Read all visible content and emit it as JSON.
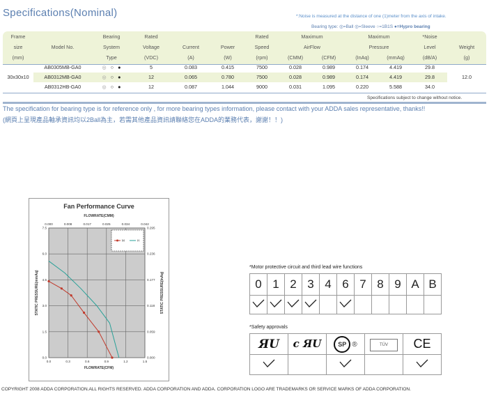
{
  "title": "Specifications(Nominal)",
  "noise_note": "*:Noise is measured at the distance of one (1)meter from the axis of intake.",
  "bearing_type_note": {
    "prefix": "Bearing type:",
    "items": [
      "◎=Ball",
      "◎=Sleeve",
      "○=1B1S",
      "●=Hypro bearing"
    ]
  },
  "table": {
    "headers": [
      [
        "Frame",
        "",
        "Bearing",
        "Rated",
        "",
        "",
        "Rated",
        "Maximum",
        "",
        "Maximum",
        "",
        "*Noise",
        ""
      ],
      [
        "size",
        "Model No.",
        "System",
        "Voltage",
        "Current",
        "Power",
        "Speed",
        "AirFlow",
        "",
        "Pressure",
        "",
        "Level",
        "Weight"
      ],
      [
        "(mm)",
        "",
        "Type",
        "(VDC)",
        "(A)",
        "(W)",
        "(rpm)",
        "(CMM)",
        "(CFM)",
        "(InAq)",
        "(mmAq)",
        "(dB/A)",
        "(g)"
      ]
    ],
    "frame": "30x30x10",
    "weight": "12.0",
    "rows": [
      {
        "model": "AB0305MB-GA0",
        "voltage": "5",
        "current": "0.083",
        "power": "0.415",
        "speed": "7500",
        "cmm": "0.028",
        "cfm": "0.989",
        "inaq": "0.174",
        "mmaq": "4.419",
        "noise": "29.8"
      },
      {
        "model": "AB0312MB-GA0",
        "voltage": "12",
        "current": "0.065",
        "power": "0.780",
        "speed": "7500",
        "cmm": "0.028",
        "cfm": "0.989",
        "inaq": "0.174",
        "mmaq": "4.419",
        "noise": "29.8"
      },
      {
        "model": "AB0312HB-GA0",
        "voltage": "12",
        "current": "0.087",
        "power": "1.044",
        "speed": "9000",
        "cmm": "0.031",
        "cfm": "1.095",
        "inaq": "0.220",
        "mmaq": "5.588",
        "noise": "34.0"
      }
    ],
    "bearing_symbols": [
      "◎",
      "○",
      "●"
    ]
  },
  "footnote": "Specifications subject to change without notice.",
  "english_note": "The specification for bearing type is for reference only , for more bearing types information, please contact with your ADDA sales representative, thanks!!",
  "chinese_note": "(網頁上呈現產品軸承資訊均以2Ball為主，若需其他產品資訊請聯絡您在ADDA的業務代表，謝謝！！)",
  "chart_data": {
    "type": "line",
    "title": "Fan Performance Curve",
    "top_axis_label": "FLOWRATE(CMM)",
    "top_ticks": [
      "0.000",
      "0.008",
      "0.017",
      "0.025",
      "0.034",
      "0.042"
    ],
    "xlabel": "FLOWRATE(CFM)",
    "x_ticks": [
      "0.0",
      "0.3",
      "0.6",
      "0.9",
      "1.2",
      "1.5"
    ],
    "ylabel": "STATIC PRESSURE(mmAq)",
    "y_ticks": [
      "0.0",
      "1.5",
      "3.0",
      "4.5",
      "6.0",
      "7.5"
    ],
    "ylabel_right": "STATIC PRESSURE(InAq)",
    "y_right_ticks": [
      "0.000",
      "0.059",
      "0.118",
      "0.177",
      "0.236",
      "0.295"
    ],
    "xlim": [
      0,
      1.5
    ],
    "ylim": [
      0,
      7.5
    ],
    "grid": true,
    "legend": "top-right",
    "series": [
      {
        "name": "M",
        "color": "#c0392b",
        "x": [
          0.0,
          0.2,
          0.35,
          0.55,
          0.78,
          0.989
        ],
        "y": [
          4.419,
          4.0,
          3.6,
          2.6,
          1.5,
          0.0
        ]
      },
      {
        "name": "H",
        "color": "#2aa198",
        "x": [
          0.0,
          0.25,
          0.5,
          0.75,
          0.95,
          1.095
        ],
        "y": [
          5.588,
          4.9,
          4.0,
          3.0,
          2.0,
          0.0
        ]
      }
    ]
  },
  "motor_title": "*Motor protective circuit and third lead wire functions",
  "motor_functions": [
    "0",
    "1",
    "2",
    "3",
    "4",
    "6",
    "7",
    "8",
    "9",
    "A",
    "B"
  ],
  "motor_checks": [
    true,
    true,
    true,
    true,
    false,
    true,
    false,
    false,
    false,
    false,
    false
  ],
  "safety_title": "*Safety approvals",
  "safety_logos": [
    {
      "icon": "ul-recognized-icon",
      "text": "ЯU"
    },
    {
      "icon": "cul-recognized-icon",
      "text": "c ЯU"
    },
    {
      "icon": "csa-icon",
      "text": "SP ®"
    },
    {
      "icon": "tuv-icon",
      "text": "TÜV"
    },
    {
      "icon": "ce-icon",
      "text": "CE"
    }
  ],
  "safety_checks": [
    true,
    false,
    true,
    false,
    true
  ],
  "check_glyph": "✓",
  "copyright": "COPYRIGHT 2008 ADDA CORPORATION.ALL RIGHTS RESERVED. ADDA CORPORATION AND ADDA. CORPORATION LOGO ARE TRADEMARKS OR SERVICE MARKS OF ADDA CORPORATION."
}
